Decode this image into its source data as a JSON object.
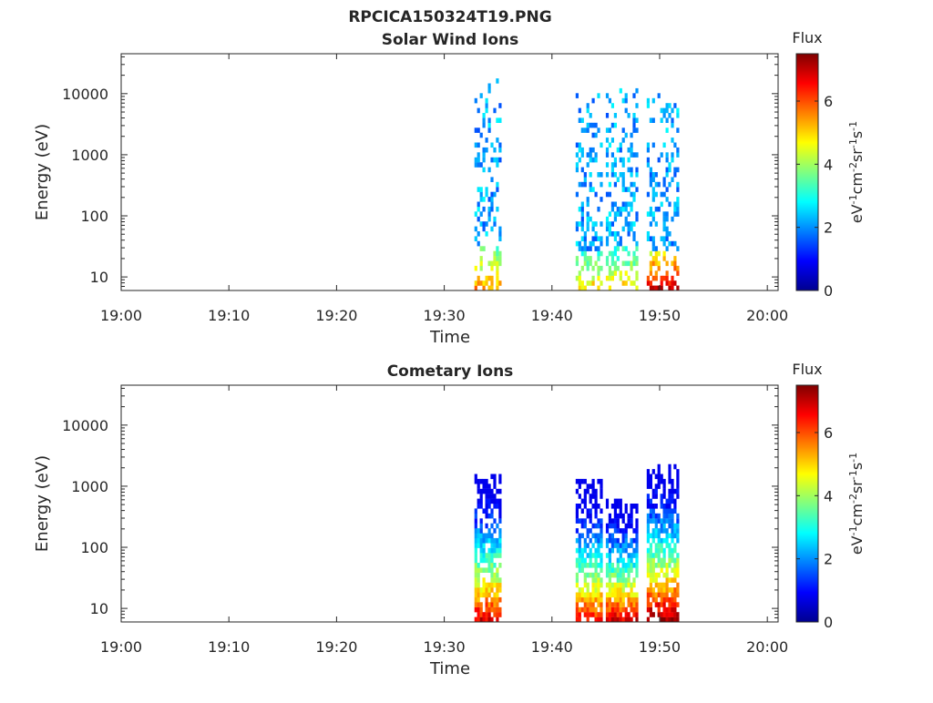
{
  "figure_title": "RPCICA150324T19.PNG",
  "chart_data": [
    {
      "type": "heatmap",
      "title": "Solar Wind Ions",
      "xlabel": "Time",
      "ylabel": "Energy (eV)",
      "x_ticks": [
        "19:00",
        "19:10",
        "19:20",
        "19:30",
        "19:40",
        "19:50",
        "20:00"
      ],
      "y_scale": "log",
      "y_ticks": [
        10,
        100,
        1000,
        10000
      ],
      "y_tick_labels": [
        "10",
        "100",
        "1000",
        "10000"
      ],
      "xlim": [
        "19:00",
        "20:01"
      ],
      "ylim": [
        6,
        45000
      ],
      "grid": false,
      "colorbar": {
        "label_top": "Flux",
        "unit_label": "eV-1cm-2sr-1s-1",
        "range": [
          0,
          7.5
        ],
        "ticks": [
          0,
          2,
          4,
          6
        ],
        "colormap": "jet"
      },
      "bursts": [
        {
          "start_min": 32.8,
          "end_min": 35.2,
          "max_energy": 15000,
          "peak_value": 5.5
        },
        {
          "start_min": 42.2,
          "end_min": 44.5,
          "max_energy": 10000,
          "peak_value": 5.0
        },
        {
          "start_min": 45.0,
          "end_min": 48.0,
          "max_energy": 11000,
          "peak_value": 5.0
        },
        {
          "start_min": 48.8,
          "end_min": 51.7,
          "max_energy": 10000,
          "peak_value": 7.0
        }
      ]
    },
    {
      "type": "heatmap",
      "title": "Cometary Ions",
      "xlabel": "Time",
      "ylabel": "Energy (eV)",
      "x_ticks": [
        "19:00",
        "19:10",
        "19:20",
        "19:30",
        "19:40",
        "19:50",
        "20:00"
      ],
      "y_scale": "log",
      "y_ticks": [
        10,
        100,
        1000,
        10000
      ],
      "y_tick_labels": [
        "10",
        "100",
        "1000",
        "10000"
      ],
      "xlim": [
        "19:00",
        "20:01"
      ],
      "ylim": [
        6,
        45000
      ],
      "grid": false,
      "colorbar": {
        "label_top": "Flux",
        "unit_label": "eV-1cm-2sr-1s-1",
        "range": [
          0,
          7.5
        ],
        "ticks": [
          0,
          2,
          4,
          6
        ],
        "colormap": "jet"
      },
      "bursts": [
        {
          "start_min": 32.8,
          "end_min": 35.2,
          "max_energy": 1500,
          "peak_value": 6.8
        },
        {
          "start_min": 42.2,
          "end_min": 44.6,
          "max_energy": 1100,
          "peak_value": 6.5
        },
        {
          "start_min": 45.0,
          "end_min": 48.0,
          "max_energy": 600,
          "peak_value": 6.8
        },
        {
          "start_min": 48.8,
          "end_min": 51.7,
          "max_energy": 2200,
          "peak_value": 7.3
        }
      ]
    }
  ]
}
